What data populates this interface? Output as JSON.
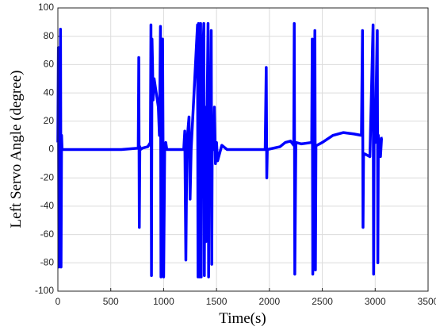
{
  "chart_data": {
    "type": "line",
    "xlabel": "Time(s)",
    "ylabel": "Left Servo Angle (degree)",
    "x": [
      0,
      5,
      10,
      15,
      20,
      25,
      30,
      35,
      40,
      50,
      200,
      400,
      600,
      760,
      765,
      770,
      775,
      780,
      800,
      850,
      875,
      880,
      885,
      890,
      895,
      900,
      910,
      930,
      950,
      960,
      970,
      975,
      980,
      990,
      1000,
      1010,
      1020,
      1030,
      1100,
      1190,
      1200,
      1210,
      1220,
      1240,
      1250,
      1260,
      1320,
      1325,
      1330,
      1340,
      1350,
      1355,
      1360,
      1380,
      1385,
      1390,
      1400,
      1410,
      1420,
      1425,
      1430,
      1440,
      1450,
      1455,
      1460,
      1470,
      1480,
      1490,
      1500,
      1510,
      1550,
      1600,
      1960,
      1970,
      1975,
      1980,
      2100,
      2150,
      2200,
      2230,
      2235,
      2240,
      2250,
      2300,
      2400,
      2405,
      2410,
      2420,
      2430,
      2435,
      2440,
      2450,
      2500,
      2600,
      2700,
      2800,
      2870,
      2880,
      2885,
      2890,
      2900,
      2950,
      2980,
      2985,
      2990,
      3000,
      3020,
      3025,
      3030,
      3050,
      3060,
      3070
    ],
    "series": [
      {
        "name": "Left Servo Angle",
        "color": "#0000ff",
        "values": [
          5,
          72,
          -83,
          60,
          -45,
          85,
          -83,
          10,
          0,
          0,
          0,
          0,
          0,
          1,
          65,
          -55,
          2,
          0,
          1,
          2,
          5,
          88,
          -89,
          78,
          60,
          35,
          50,
          40,
          30,
          10,
          87,
          -90,
          70,
          78,
          -90,
          2,
          5,
          0,
          0,
          0,
          13,
          -78,
          5,
          23,
          -35,
          0,
          88,
          -90,
          89,
          -90,
          89,
          -90,
          40,
          89,
          -89,
          30,
          -65,
          20,
          89,
          -90,
          10,
          0,
          84,
          -81,
          20,
          0,
          30,
          -10,
          5,
          -8,
          3,
          0,
          0,
          58,
          -20,
          0,
          2,
          5,
          6,
          3,
          89,
          -88,
          5,
          4,
          5,
          78,
          -88,
          5,
          84,
          -85,
          3,
          3,
          5,
          10,
          12,
          11,
          10,
          84,
          -55,
          -3,
          -3,
          -5,
          88,
          -88,
          20,
          5,
          84,
          -80,
          10,
          -5,
          8,
          8
        ]
      }
    ],
    "xlim": [
      0,
      3500
    ],
    "xticks": [
      0,
      500,
      1000,
      1500,
      2000,
      2500,
      3000,
      3500
    ],
    "ylim": [
      -100,
      100
    ],
    "yticks": [
      -100,
      -80,
      -60,
      -40,
      -20,
      0,
      20,
      40,
      60,
      80,
      100
    ],
    "grid": true
  }
}
